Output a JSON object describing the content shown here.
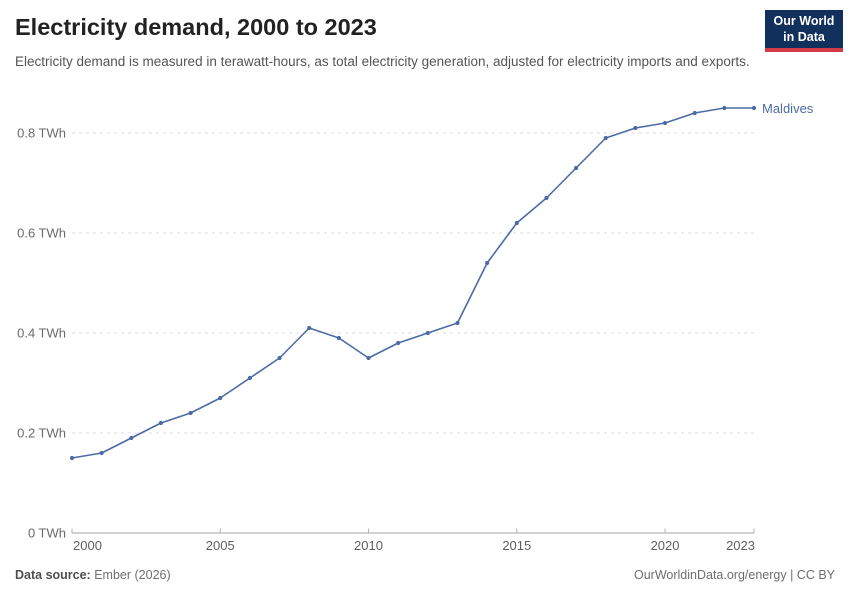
{
  "header": {
    "title": "Electricity demand, 2000 to 2023",
    "subtitle": "Electricity demand is measured in terawatt-hours, as total electricity generation, adjusted for electricity imports and exports.",
    "logo": {
      "line1": "Our World",
      "line2": "in Data"
    }
  },
  "footer": {
    "source_label": "Data source:",
    "source_value": " Ember (2026)",
    "credit": "OurWorldinData.org/energy | CC BY"
  },
  "colors": {
    "line": "#4c6ba5",
    "grid": "#dcdcdc",
    "axis": "#a3a3a3",
    "tick": "#b3b3b3",
    "y_label": "#6a6a6a",
    "x_label": "#5f5f5f",
    "title": "#222222",
    "subtitle": "#555555",
    "logo_bg": "#12305c",
    "logo_red": "#d23b47"
  },
  "chart_data": {
    "type": "line",
    "title": "Electricity demand, 2000 to 2023",
    "ylabel": "",
    "xlabel": "",
    "unit": "TWh",
    "grid": "horizontal-dashed",
    "legend_position": "end-of-line",
    "x": [
      2000,
      2001,
      2002,
      2003,
      2004,
      2005,
      2006,
      2007,
      2008,
      2009,
      2010,
      2011,
      2012,
      2013,
      2014,
      2015,
      2016,
      2017,
      2018,
      2019,
      2020,
      2021,
      2022,
      2023
    ],
    "series": [
      {
        "name": "Maldives",
        "color": "#4c6ba5",
        "values": [
          0.15,
          0.16,
          0.19,
          0.22,
          0.24,
          0.27,
          0.31,
          0.35,
          0.41,
          0.39,
          0.35,
          0.38,
          0.4,
          0.42,
          0.54,
          0.62,
          0.67,
          0.73,
          0.79,
          0.81,
          0.82,
          0.84,
          0.85,
          0.85
        ]
      }
    ],
    "xlim": [
      2000,
      2023
    ],
    "ylim": [
      0,
      0.85
    ],
    "xticks": [
      2000,
      2005,
      2010,
      2015,
      2020,
      2023
    ],
    "yticks": [
      0,
      0.2,
      0.4,
      0.6,
      0.8
    ],
    "ytick_suffix": " TWh"
  }
}
